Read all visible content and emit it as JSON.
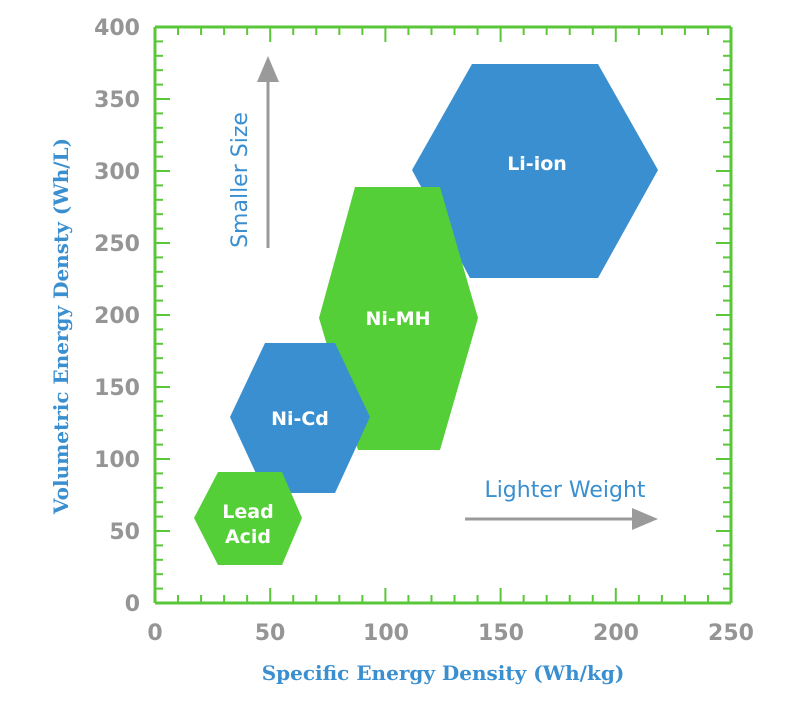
{
  "chart": {
    "xaxis_title": "Specific Energy Density (Wh/kg)",
    "yaxis_title": "Volumetric Energy Densty (Wh/L)",
    "x_ticks": [
      "0",
      "50",
      "100",
      "150",
      "200",
      "250"
    ],
    "y_ticks": [
      "0",
      "50",
      "100",
      "150",
      "200",
      "250",
      "300",
      "350",
      "400"
    ],
    "annotations": {
      "vertical": "Smaller Size",
      "horizontal": "Lighter Weight"
    },
    "colors": {
      "axis": "#5ac73a",
      "blue": "#3a8fd0",
      "green": "#55cf37",
      "arrow": "#9a9a9a",
      "tick_text": "#959595"
    },
    "regions": [
      {
        "label": "Lead Acid",
        "line1": "Lead",
        "line2": "Acid"
      },
      {
        "label": "Ni-Cd"
      },
      {
        "label": "Ni-MH"
      },
      {
        "label": "Li-ion"
      }
    ]
  },
  "chart_data": {
    "type": "scatter",
    "title": "",
    "xlabel": "Specific Energy Density (Wh/kg)",
    "ylabel": "Volumetric Energy Densty (Wh/L)",
    "xlim": [
      0,
      250
    ],
    "ylim": [
      0,
      400
    ],
    "x_ticks": [
      0,
      50,
      100,
      150,
      200,
      250
    ],
    "y_ticks": [
      0,
      50,
      100,
      150,
      200,
      250,
      300,
      350,
      400
    ],
    "grid": false,
    "legend": null,
    "series": [
      {
        "name": "Lead Acid",
        "shape": "hexagon",
        "color": "#55cf37",
        "x_range": [
          17,
          64
        ],
        "y_range": [
          27,
          91
        ],
        "center": [
          40,
          59
        ]
      },
      {
        "name": "Ni-Cd",
        "shape": "hexagon",
        "color": "#3a8fd0",
        "x_range": [
          33,
          93
        ],
        "y_range": [
          76,
          181
        ],
        "center": [
          63,
          129
        ]
      },
      {
        "name": "Ni-MH",
        "shape": "hexagon",
        "color": "#55cf37",
        "x_range": [
          71,
          140
        ],
        "y_range": [
          106,
          289
        ],
        "center": [
          106,
          198
        ]
      },
      {
        "name": "Li-ion",
        "shape": "hexagon",
        "color": "#3a8fd0",
        "x_range": [
          112,
          218
        ],
        "y_range": [
          226,
          374
        ],
        "center": [
          165,
          300
        ]
      }
    ],
    "annotations": [
      {
        "text": "Smaller Size",
        "direction": "up",
        "x": 50,
        "y_from": 245,
        "y_to": 378
      },
      {
        "text": "Lighter Weight",
        "direction": "right",
        "x_from": 135,
        "x_to": 219,
        "y": 57
      }
    ]
  }
}
